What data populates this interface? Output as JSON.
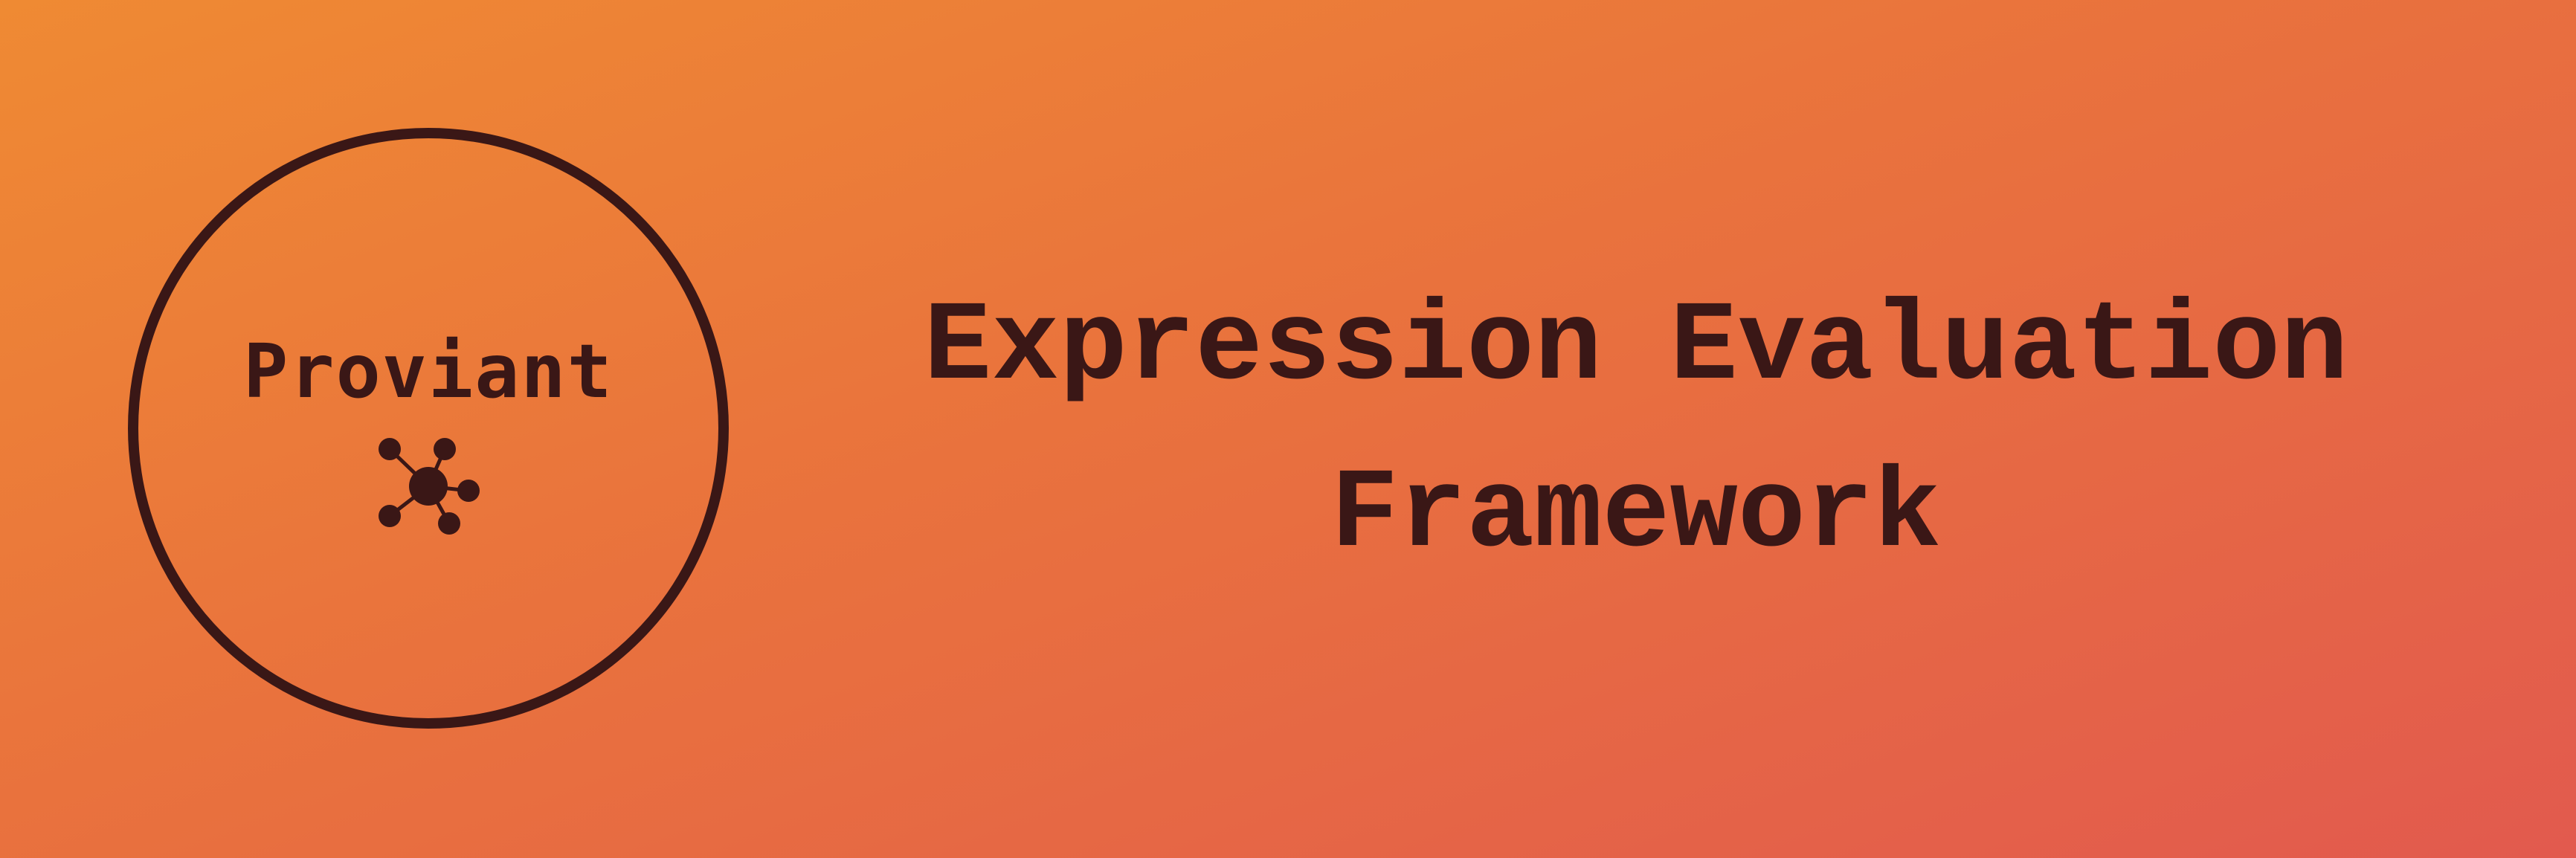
{
  "brand": {
    "name": "Proviant",
    "icon": "network-hub-icon"
  },
  "title": {
    "line1": "Expression Evaluation",
    "line2": "Framework"
  },
  "colors": {
    "background_start": "#EF8A33",
    "background_end": "#E25A4E",
    "ink": "#3A1716"
  }
}
